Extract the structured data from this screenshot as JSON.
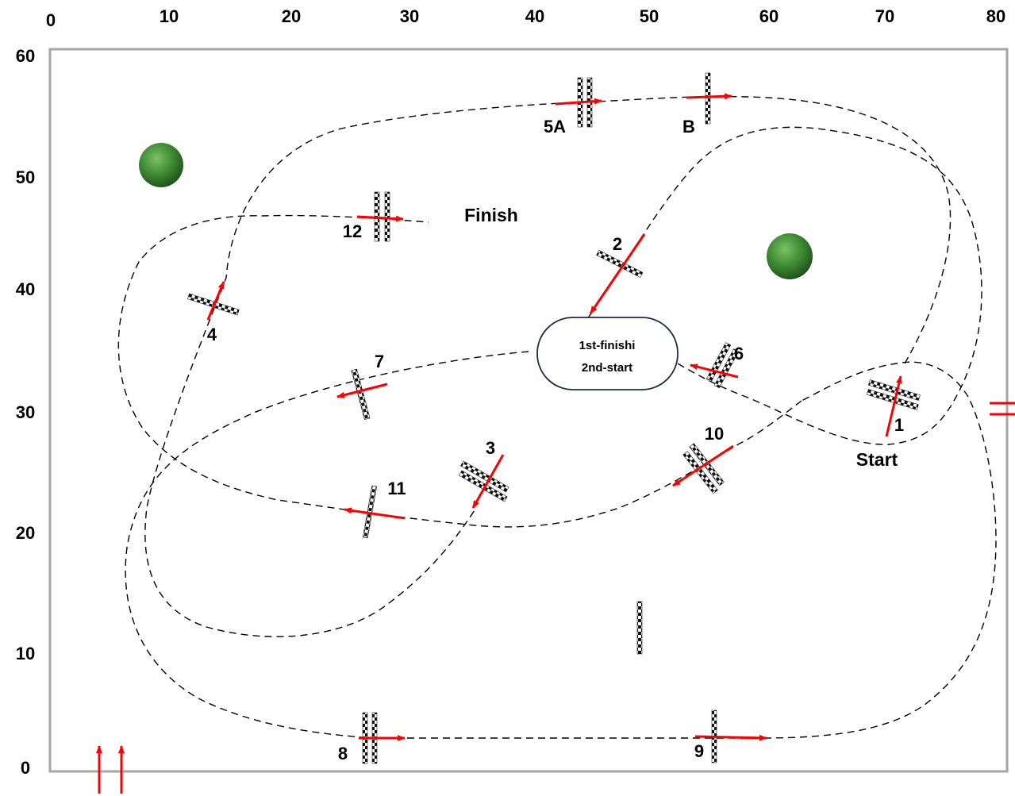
{
  "course": {
    "x_axis_labels": [
      "0",
      "10",
      "20",
      "30",
      "40",
      "50",
      "60",
      "70",
      "80"
    ],
    "y_axis_labels": [
      "0",
      "10",
      "20",
      "30",
      "40",
      "50",
      "60"
    ],
    "start_label": "Start",
    "finish_label": "Finish",
    "center_box": {
      "line1": "1st-finishi",
      "line2": "2nd-start"
    },
    "fences": [
      {
        "id": "1",
        "label": "1"
      },
      {
        "id": "2",
        "label": "2"
      },
      {
        "id": "3",
        "label": "3"
      },
      {
        "id": "4",
        "label": "4"
      },
      {
        "id": "5A",
        "label": "5A"
      },
      {
        "id": "B",
        "label": "B"
      },
      {
        "id": "6",
        "label": "6"
      },
      {
        "id": "7",
        "label": "7"
      },
      {
        "id": "8",
        "label": "8"
      },
      {
        "id": "9",
        "label": "9"
      },
      {
        "id": "10",
        "label": "10"
      },
      {
        "id": "11",
        "label": "11"
      },
      {
        "id": "12",
        "label": "12"
      }
    ],
    "colors": {
      "arrow": "#ff0000",
      "path": "#000000",
      "border": "#a6a6a6",
      "tree": "#3c8a32",
      "box_border": "#1f2a44"
    },
    "icons": [
      "tree-icon",
      "entrance-arrow-icon",
      "exit-gate-icon"
    ]
  }
}
